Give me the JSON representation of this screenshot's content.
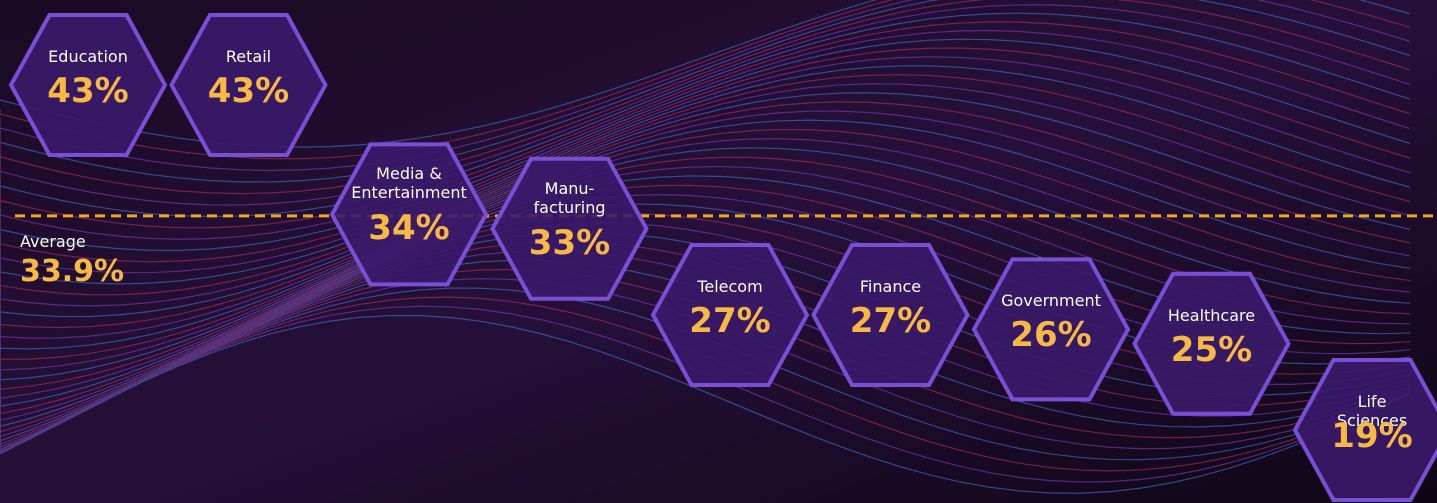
{
  "chart_data": {
    "type": "hexagon",
    "categories": [
      "Education",
      "Retail",
      "Media &\nEntertainment",
      "Manu-\nfacturing",
      "Telecom",
      "Finance",
      "Government",
      "Healthcare",
      "Life Sciences"
    ],
    "values": [
      43,
      43,
      34,
      33,
      27,
      27,
      26,
      25,
      19
    ],
    "value_labels": [
      "43%",
      "43%",
      "34%",
      "33%",
      "27%",
      "27%",
      "26%",
      "25%",
      "19%"
    ],
    "color": "#7a4fd6",
    "average": {
      "label": "Average",
      "value": 33.9,
      "value_label": "33.9%",
      "color": "#f0a81e"
    }
  }
}
